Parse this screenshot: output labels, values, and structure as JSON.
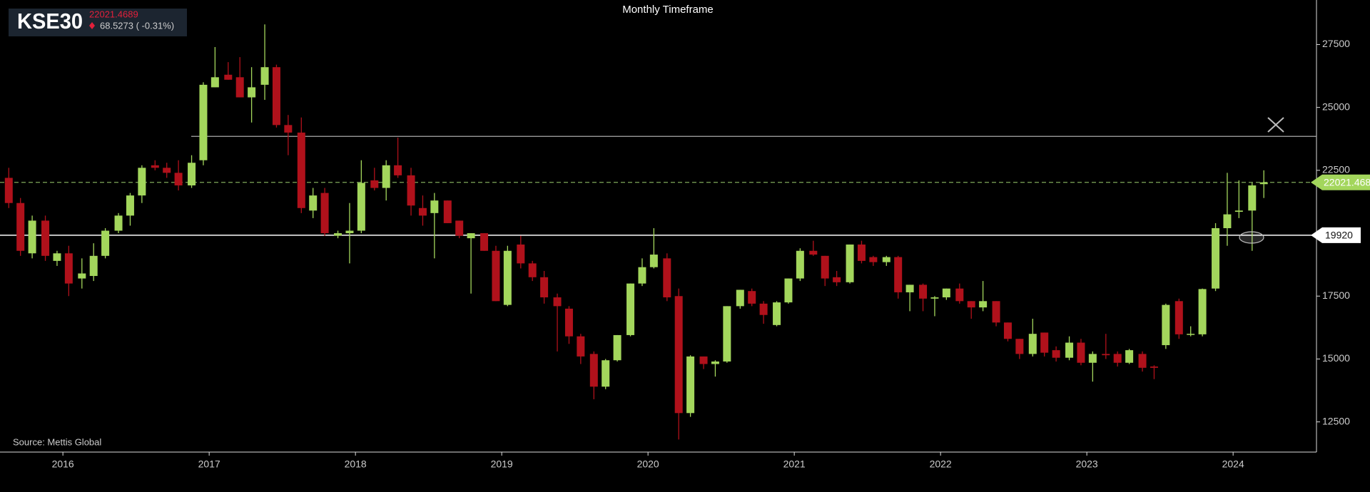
{
  "header": {
    "symbol": "KSE30",
    "change_text": "68.5273 ( -0.31%)"
  },
  "chart_data": {
    "type": "candlestick",
    "title": "Monthly Timeframe",
    "source": "Source: Mettis Global",
    "x": [
      2015.63,
      2015.71,
      2015.79,
      2015.88,
      2015.96,
      2016.04,
      2016.13,
      2016.21,
      2016.29,
      2016.38,
      2016.46,
      2016.54,
      2016.63,
      2016.71,
      2016.79,
      2016.88,
      2016.96,
      2017.04,
      2017.13,
      2017.21,
      2017.29,
      2017.38,
      2017.46,
      2017.54,
      2017.63,
      2017.71,
      2017.79,
      2017.88,
      2017.96,
      2018.04,
      2018.13,
      2018.21,
      2018.29,
      2018.38,
      2018.46,
      2018.54,
      2018.63,
      2018.71,
      2018.79,
      2018.88,
      2018.96,
      2019.04,
      2019.13,
      2019.21,
      2019.29,
      2019.38,
      2019.46,
      2019.54,
      2019.63,
      2019.71,
      2019.79,
      2019.88,
      2019.96,
      2020.04,
      2020.13,
      2020.21,
      2020.29,
      2020.38,
      2020.46,
      2020.54,
      2020.63,
      2020.71,
      2020.79,
      2020.88,
      2020.96,
      2021.04,
      2021.13,
      2021.21,
      2021.29,
      2021.38,
      2021.46,
      2021.54,
      2021.63,
      2021.71,
      2021.79,
      2021.88,
      2021.96,
      2022.04,
      2022.13,
      2022.21,
      2022.29,
      2022.38,
      2022.46,
      2022.54,
      2022.63,
      2022.71,
      2022.79,
      2022.88,
      2022.96,
      2023.04,
      2023.13,
      2023.21,
      2023.29,
      2023.38,
      2023.46,
      2023.54,
      2023.63,
      2023.71,
      2023.79,
      2023.88,
      2023.96,
      2024.04,
      2024.13,
      2024.21
    ],
    "open": [
      22200,
      21200,
      19200,
      20500,
      18900,
      19200,
      18200,
      18300,
      19100,
      20100,
      20700,
      21500,
      22700,
      22600,
      22400,
      21900,
      22900,
      25800,
      26300,
      26200,
      25400,
      25900,
      26600,
      24300,
      24000,
      20900,
      21600,
      19900,
      20000,
      20100,
      22100,
      21800,
      22700,
      22300,
      21000,
      20800,
      21300,
      20500,
      19800,
      20000,
      19300,
      17150,
      19550,
      18800,
      18250,
      17450,
      17000,
      15900,
      15200,
      13900,
      14950,
      15950,
      18000,
      18650,
      19000,
      17500,
      12850,
      15100,
      14800,
      14900,
      17100,
      17700,
      17200,
      16350,
      17250,
      18200,
      19300,
      19100,
      18250,
      18050,
      19550,
      19050,
      18850,
      19050,
      17650,
      17950,
      17400,
      17450,
      17800,
      17300,
      17050,
      17300,
      16450,
      15800,
      15200,
      16050,
      15350,
      15050,
      15650,
      14850,
      15200,
      15200,
      14850,
      15200,
      14700,
      15550,
      17300,
      15980,
      15980,
      17800,
      20200,
      20850,
      20900,
      21950
    ],
    "high": [
      22600,
      21400,
      20700,
      20700,
      19300,
      19500,
      19000,
      19600,
      20200,
      20800,
      21600,
      22700,
      22900,
      22800,
      22900,
      23100,
      26000,
      27400,
      26800,
      27000,
      26600,
      28300,
      26700,
      24700,
      24600,
      21800,
      21800,
      20100,
      21200,
      22900,
      22600,
      22900,
      23800,
      22600,
      21500,
      21600,
      21300,
      20500,
      20000,
      20000,
      19500,
      19500,
      19900,
      18900,
      18500,
      17600,
      17100,
      16000,
      15300,
      15000,
      15950,
      18000,
      19000,
      20200,
      19200,
      17800,
      15150,
      15100,
      14950,
      17100,
      17750,
      17800,
      17300,
      17300,
      18200,
      19400,
      19700,
      19100,
      18500,
      19550,
      19700,
      19100,
      19100,
      19100,
      17950,
      18000,
      17500,
      17800,
      18000,
      17300,
      18100,
      17300,
      16450,
      15800,
      16600,
      16050,
      15500,
      15900,
      15800,
      15300,
      16000,
      15300,
      15400,
      15300,
      14750,
      17200,
      17400,
      16300,
      17800,
      20400,
      22400,
      22100,
      22000,
      22500
    ],
    "low": [
      21000,
      19100,
      19000,
      18900,
      18700,
      17500,
      17800,
      18100,
      19000,
      20000,
      20300,
      21200,
      22500,
      22200,
      21700,
      21800,
      22700,
      25800,
      26100,
      25400,
      24400,
      25300,
      24200,
      23100,
      20800,
      20600,
      19900,
      19800,
      18800,
      20000,
      21700,
      21300,
      22200,
      20700,
      20300,
      19000,
      20400,
      19800,
      17600,
      19300,
      17300,
      17100,
      18600,
      18100,
      17200,
      15300,
      15600,
      14800,
      13400,
      13800,
      14900,
      15900,
      17900,
      18600,
      17300,
      11800,
      12700,
      14600,
      14300,
      14850,
      17000,
      17100,
      16400,
      16300,
      17200,
      18100,
      19100,
      17900,
      17900,
      18000,
      18800,
      18700,
      18700,
      17400,
      16900,
      16900,
      16700,
      17350,
      17200,
      16600,
      16900,
      16300,
      15700,
      15000,
      15100,
      15100,
      14900,
      14950,
      14750,
      14100,
      15000,
      14700,
      14800,
      14500,
      14200,
      15400,
      15800,
      15900,
      15900,
      17700,
      19500,
      20600,
      19300,
      21400
    ],
    "close": [
      21200,
      19300,
      20500,
      19100,
      19200,
      18000,
      18400,
      19100,
      20100,
      20700,
      21500,
      22600,
      22600,
      22400,
      21900,
      22800,
      25900,
      26200,
      26100,
      25400,
      25800,
      26600,
      24300,
      24000,
      21000,
      21500,
      20000,
      20000,
      20100,
      22000,
      21800,
      22700,
      22300,
      21100,
      20700,
      21300,
      20400,
      19900,
      20000,
      19300,
      17300,
      19300,
      18800,
      18250,
      17450,
      17100,
      15900,
      15100,
      13900,
      14950,
      15950,
      18000,
      18650,
      19150,
      17450,
      12850,
      15100,
      14800,
      14900,
      17100,
      17750,
      17200,
      16750,
      17250,
      18200,
      19300,
      19150,
      18200,
      18050,
      19550,
      18900,
      18850,
      19050,
      17650,
      17950,
      17400,
      17450,
      17800,
      17300,
      17050,
      17300,
      16450,
      15800,
      15200,
      16000,
      15250,
      15050,
      15650,
      14850,
      15200,
      15150,
      14850,
      15350,
      14650,
      14650,
      17150,
      15980,
      16000,
      17780,
      20200,
      20750,
      20900,
      21900,
      22021.4689
    ],
    "up_color": "#a3d65c",
    "down_color": "#b0111b",
    "xlim": [
      2015.57,
      2024.57
    ],
    "xticks": [
      2016,
      2017,
      2018,
      2019,
      2020,
      2021,
      2022,
      2023,
      2024
    ],
    "ylim": [
      11300,
      29270
    ],
    "yticks": [
      12500,
      15000,
      17500,
      20000,
      22500,
      25000,
      27500
    ],
    "resistance": 23850,
    "support": 19920
  }
}
